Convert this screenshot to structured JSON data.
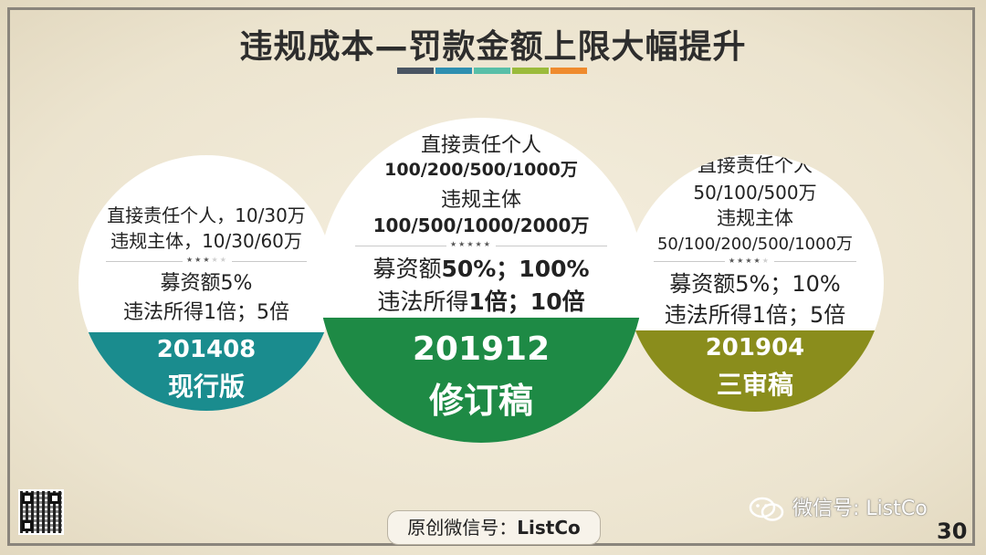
{
  "slide": {
    "title": "违规成本—罚款金额上限大幅提升",
    "title_bar_colors": [
      "#4a5563",
      "#2e8fb0",
      "#58bfa8",
      "#9bbb3b",
      "#ef8b2d"
    ],
    "page_number": "30"
  },
  "circles": {
    "left": {
      "line1": "直接责任个人，10/30万",
      "line2": "违规主体，10/30/60万",
      "line3": "募资额5%",
      "line4": "违法所得1倍；5倍",
      "band_line1": "201408",
      "band_line2": "现行版",
      "band_color": "#1a8c8e",
      "stars_filled": 3,
      "stars_total": 5
    },
    "middle": {
      "line1": "直接责任个人",
      "line2": "100/200/500/1000万",
      "line3": "违规主体",
      "line4": "100/500/1000/2000万",
      "line5a": "募资额",
      "line5b": "50%；100%",
      "line6a": "违法所得",
      "line6b": "1倍；10倍",
      "band_line1": "201912",
      "band_line2": "修订稿",
      "band_color": "#1e8a45",
      "stars_filled": 5,
      "stars_total": 5
    },
    "right": {
      "line1": "直接责任个人",
      "line2": "50/100/500万",
      "line3": "违规主体",
      "line4": "50/100/200/500/1000万",
      "line5": "募资额5%；10%",
      "line6": "违法所得1倍；5倍",
      "band_line1": "201904",
      "band_line2": "三审稿",
      "band_color": "#8a8d1c",
      "stars_filled": 4,
      "stars_total": 5
    }
  },
  "footer": {
    "source_label": "原创微信号：",
    "source_id": "ListCo",
    "wechat_watermark": "微信号: ListCo"
  }
}
